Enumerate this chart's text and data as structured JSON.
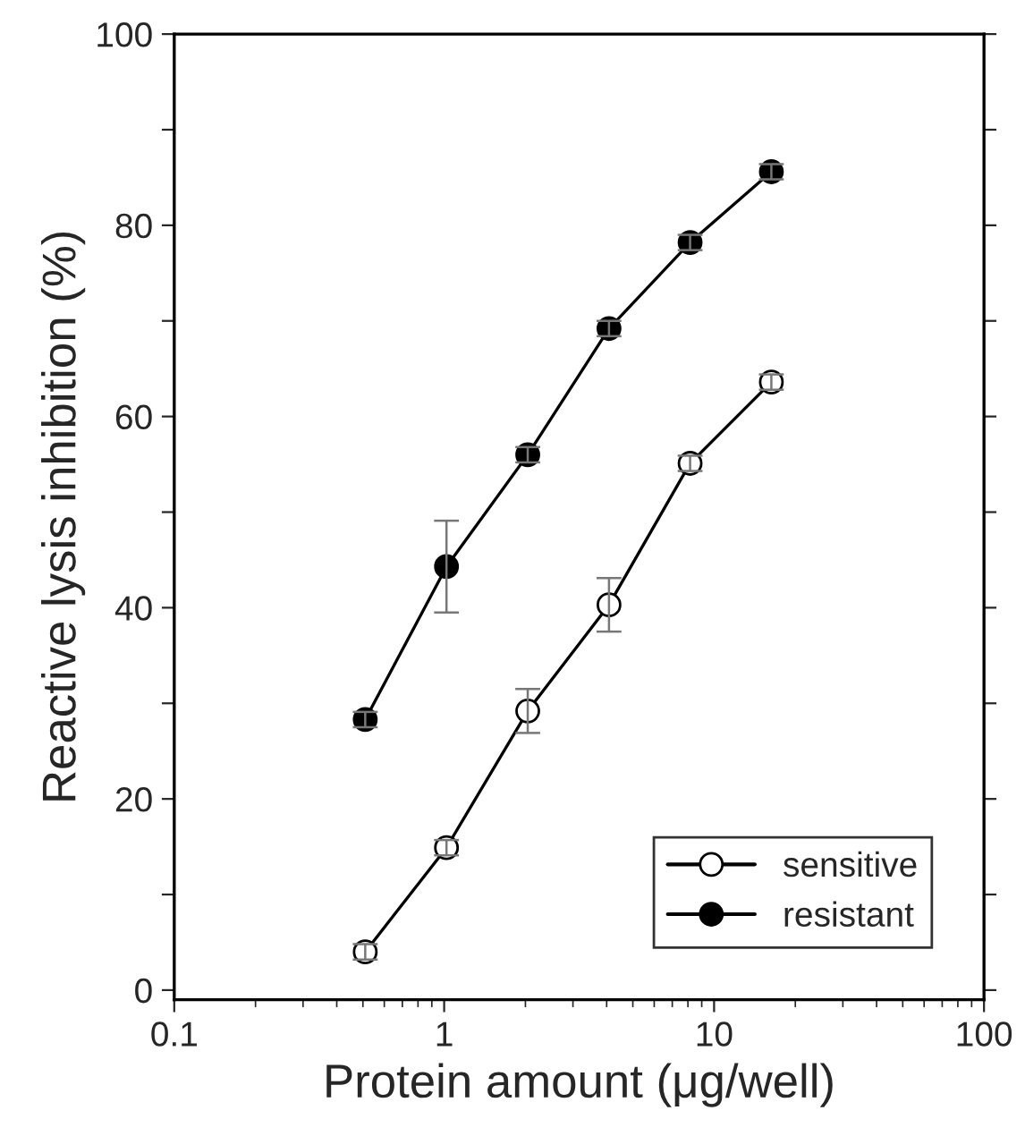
{
  "chart_data": {
    "type": "line",
    "xlabel": "Protein amount (μg/well)",
    "ylabel": "Reactive lysis inhibition (%)",
    "log": "x",
    "xlim": [
      0.1,
      100
    ],
    "xticks": [
      0.1,
      1,
      10,
      100
    ],
    "ylim": [
      -1,
      100
    ],
    "yticks": [
      0,
      {
        "value": 10,
        "label": null
      },
      20,
      {
        "value": 30,
        "label": null
      },
      40,
      {
        "value": 50,
        "label": null
      },
      60,
      {
        "value": 70,
        "label": null
      },
      80,
      {
        "value": 90,
        "label": null
      },
      100
    ],
    "x": [
      0.51,
      1.02,
      2.04,
      4.08,
      8.15,
      16.3
    ],
    "marker": "circle",
    "line_style": "solid",
    "grid": false,
    "legend": "bottom right",
    "series": [
      {
        "name": "sensitive",
        "color": "#ffffff",
        "values": [
          4.0,
          14.9,
          29.2,
          40.3,
          55.1,
          63.6
        ],
        "errors": [
          0.8,
          0.8,
          2.3,
          2.8,
          0.8,
          0.8
        ]
      },
      {
        "name": "resistant",
        "color": "#000000",
        "values": [
          28.3,
          44.3,
          56.0,
          69.2,
          78.2,
          85.6
        ],
        "errors": [
          0.8,
          4.8,
          0.8,
          0.8,
          0.8,
          0.8
        ]
      }
    ]
  }
}
